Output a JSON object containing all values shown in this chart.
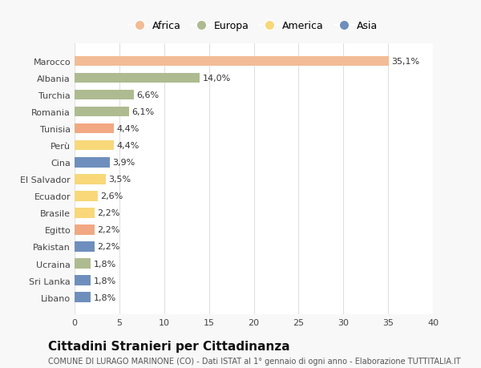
{
  "countries": [
    "Marocco",
    "Albania",
    "Turchia",
    "Romania",
    "Tunisia",
    "Perù",
    "Cina",
    "El Salvador",
    "Ecuador",
    "Brasile",
    "Egitto",
    "Pakistan",
    "Ucraina",
    "Sri Lanka",
    "Libano"
  ],
  "values": [
    35.1,
    14.0,
    6.6,
    6.1,
    4.4,
    4.4,
    3.9,
    3.5,
    2.6,
    2.2,
    2.2,
    2.2,
    1.8,
    1.8,
    1.8
  ],
  "labels": [
    "35,1%",
    "14,0%",
    "6,6%",
    "6,1%",
    "4,4%",
    "4,4%",
    "3,9%",
    "3,5%",
    "2,6%",
    "2,2%",
    "2,2%",
    "2,2%",
    "1,8%",
    "1,8%",
    "1,8%"
  ],
  "colors": [
    "#F2BC96",
    "#AEBB90",
    "#AEBB90",
    "#AEBB90",
    "#F2A882",
    "#F8D878",
    "#6E8FBD",
    "#F8D878",
    "#F8D878",
    "#F8D878",
    "#F2A882",
    "#6E8FBD",
    "#AEBB90",
    "#6E8FBD",
    "#6E8FBD"
  ],
  "continent_labels": [
    "Africa",
    "Europa",
    "America",
    "Asia"
  ],
  "continent_colors": [
    "#F2BC96",
    "#AEBB90",
    "#F8D878",
    "#6E8FBD"
  ],
  "xlim": [
    0,
    40
  ],
  "xticks": [
    0,
    5,
    10,
    15,
    20,
    25,
    30,
    35,
    40
  ],
  "title": "Cittadini Stranieri per Cittadinanza",
  "subtitle": "COMUNE DI LURAGO MARINONE (CO) - Dati ISTAT al 1° gennaio di ogni anno - Elaborazione TUTTITALIA.IT",
  "background_color": "#f8f8f8",
  "plot_bg_color": "#ffffff",
  "grid_color": "#e0e0e0",
  "label_fontsize": 8,
  "tick_fontsize": 8,
  "title_fontsize": 11,
  "subtitle_fontsize": 7
}
